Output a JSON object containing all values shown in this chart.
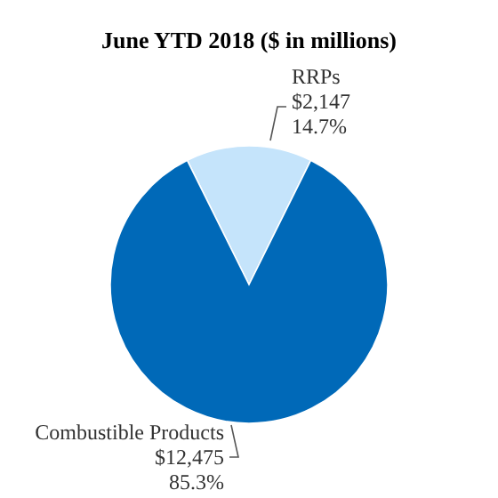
{
  "chart_data": {
    "type": "pie",
    "title": "June YTD 2018 ($ in millions)",
    "categories": [
      "RRPs",
      "Combustible Products"
    ],
    "values": [
      2147,
      12475
    ],
    "value_labels": [
      "$2,147\n14.7%",
      "$12,475\n85.3%"
    ],
    "colors": [
      "#c5e4fb",
      "#0069b8"
    ]
  }
}
